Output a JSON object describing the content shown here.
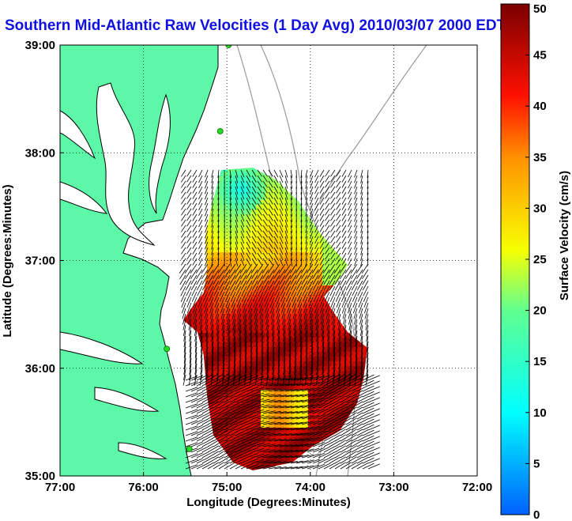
{
  "title": "Southern Mid-Atlantic Raw Velocities (1 Day Avg) 2010/03/07 2000 EDT",
  "chart_data": {
    "type": "map",
    "xlabel": "Longitude (Degrees:Minutes)",
    "ylabel": "Latitude (Degrees:Minutes)",
    "xlim": [
      -77,
      -72
    ],
    "ylim": [
      35,
      39
    ],
    "x_ticks": [
      {
        "value": -77,
        "label": "77:00"
      },
      {
        "value": -76,
        "label": "76:00"
      },
      {
        "value": -75,
        "label": "75:00"
      },
      {
        "value": -74,
        "label": "74:00"
      },
      {
        "value": -73,
        "label": "73:00"
      },
      {
        "value": -72,
        "label": "72:00"
      }
    ],
    "y_ticks": [
      {
        "value": 35,
        "label": "35:00"
      },
      {
        "value": 36,
        "label": "36:00"
      },
      {
        "value": 37,
        "label": "37:00"
      },
      {
        "value": 38,
        "label": "38:00"
      },
      {
        "value": 39,
        "label": "39:00"
      }
    ],
    "grid": "dotted",
    "colorbar": {
      "label": "Surface Velocity (cm/s)",
      "range": [
        0,
        50
      ],
      "colormap": "jet",
      "ticks": [
        {
          "value": 0,
          "label": "0"
        },
        {
          "value": 5,
          "label": "5"
        },
        {
          "value": 10,
          "label": "10"
        },
        {
          "value": 15,
          "label": "15"
        },
        {
          "value": 20,
          "label": "20"
        },
        {
          "value": 25,
          "label": "25"
        },
        {
          "value": 30,
          "label": "30"
        },
        {
          "value": 35,
          "label": "35"
        },
        {
          "value": 40,
          "label": "40"
        },
        {
          "value": 45,
          "label": "45"
        },
        {
          "value": 50,
          "label": "50"
        }
      ]
    },
    "stations": [
      {
        "lon": -74.98,
        "lat": 39.0
      },
      {
        "lon": -75.08,
        "lat": 38.2
      },
      {
        "lon": -75.72,
        "lat": 36.18
      },
      {
        "lon": -75.45,
        "lat": 35.25
      }
    ],
    "colors": {
      "land": "#5cf8a8",
      "water": "#ffffff",
      "coast": "#000000",
      "bathymetry": "#9a9a9a",
      "station": "#22dd22"
    }
  }
}
